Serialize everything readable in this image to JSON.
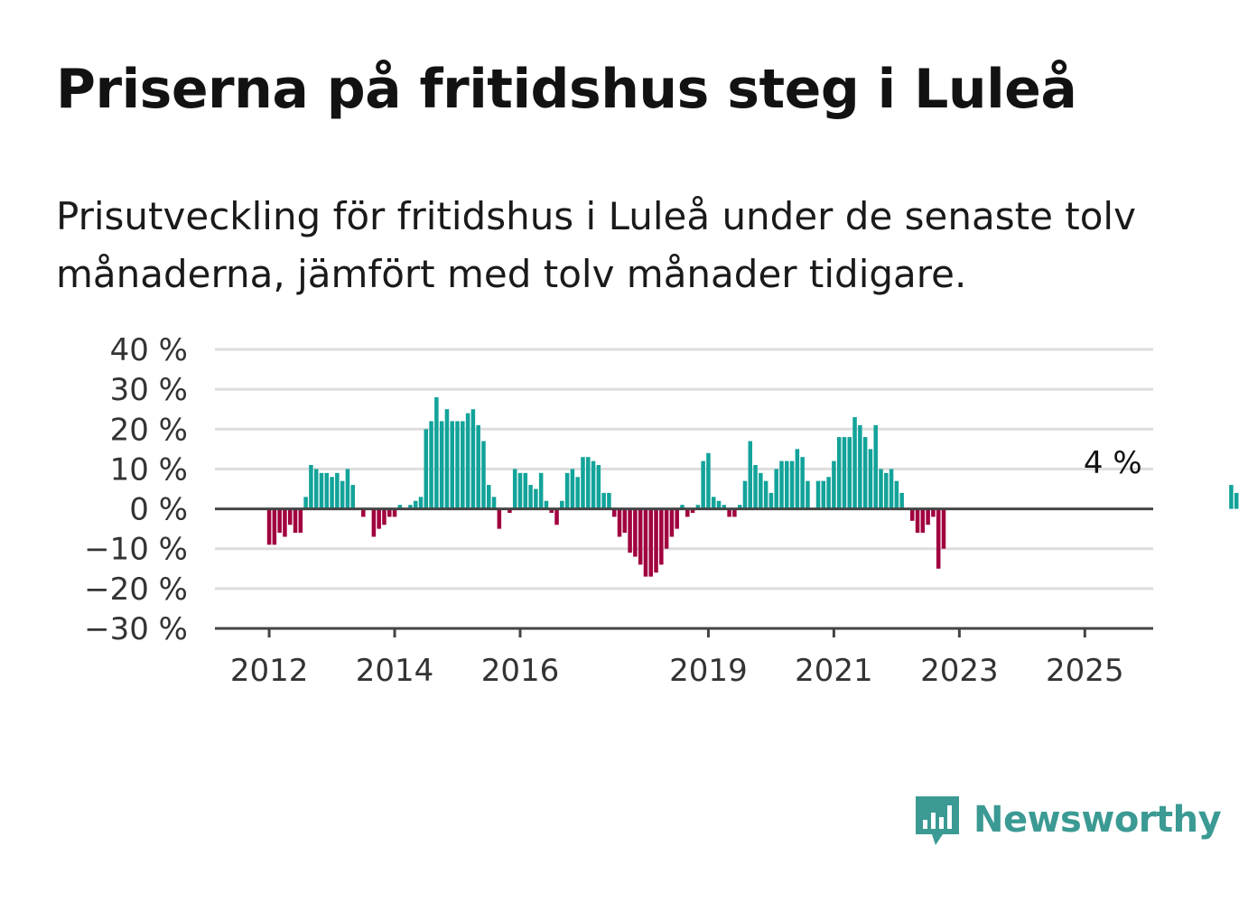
{
  "title": "Priserna på fritidshus steg i Luleå",
  "subtitle": "Prisutveckling för fritidshus i Luleå under de senaste tolv månaderna, jämfört med tolv månader tidigare.",
  "brand": {
    "name": "Newsworthy",
    "icon": "bar-chart-speech-bubble-icon",
    "color": "#3b9a93"
  },
  "chart_data": {
    "type": "bar",
    "x_start": "2011-11",
    "frequency": "monthly",
    "ylim": [
      -30,
      40
    ],
    "y_ticks": [
      40,
      30,
      20,
      10,
      0,
      -10,
      -20,
      -30
    ],
    "y_tick_labels": [
      "40 %",
      "30 %",
      "20 %",
      "10 %",
      "0 %",
      "−10 %",
      "−20 %",
      "−30 %"
    ],
    "x_ticks": [
      {
        "label": "2012",
        "date": "2012-01"
      },
      {
        "label": "2014",
        "date": "2014-01"
      },
      {
        "label": "2016",
        "date": "2016-01"
      },
      {
        "label": "2019",
        "date": "2019-01"
      },
      {
        "label": "2021",
        "date": "2021-01"
      },
      {
        "label": "2023",
        "date": "2023-01"
      },
      {
        "label": "2025",
        "date": "2025-01"
      }
    ],
    "positive_color": "#12a39a",
    "negative_color": "#a1003f",
    "grid": true,
    "annotation": {
      "text": "4 %",
      "date": "2025-06"
    },
    "values": [
      null,
      null,
      -9,
      -9,
      -6,
      -7,
      -4,
      -6,
      -6,
      3,
      11,
      10,
      9,
      9,
      8,
      9,
      7,
      10,
      6,
      0,
      -2,
      0,
      -7,
      -5,
      -4,
      -2,
      -2,
      1,
      0,
      1,
      2,
      3,
      20,
      22,
      28,
      22,
      25,
      22,
      22,
      22,
      24,
      25,
      21,
      17,
      6,
      3,
      -5,
      0,
      -1,
      10,
      9,
      9,
      6,
      5,
      9,
      2,
      -1,
      -4,
      2,
      9,
      10,
      8,
      13,
      13,
      12,
      11,
      4,
      4,
      -2,
      -7,
      -6,
      -11,
      -12,
      -14,
      -17,
      -17,
      -16,
      -14,
      -10,
      -7,
      -5,
      1,
      -2,
      -1,
      1,
      12,
      14,
      3,
      2,
      1,
      -2,
      -2,
      1,
      7,
      17,
      11,
      9,
      7,
      4,
      10,
      12,
      12,
      12,
      15,
      13,
      7,
      0,
      7,
      7,
      8,
      12,
      18,
      18,
      18,
      23,
      21,
      18,
      15,
      21,
      10,
      9,
      10,
      7,
      4,
      0,
      -3,
      -6,
      -6,
      -4,
      -2,
      -15,
      -10,
      null,
      null,
      null,
      null,
      null,
      null,
      null,
      null,
      null,
      null,
      null,
      null,
      null,
      null,
      null,
      null,
      null,
      null,
      null,
      null,
      null,
      null,
      null,
      null,
      null,
      null,
      null,
      null,
      null,
      null,
      null,
      null,
      null,
      null,
      null,
      null,
      null,
      null,
      null,
      null,
      null,
      null,
      null,
      null,
      null,
      null,
      null,
      null,
      null,
      null,
      null,
      null,
      null,
      null,
      6,
      4
    ]
  }
}
